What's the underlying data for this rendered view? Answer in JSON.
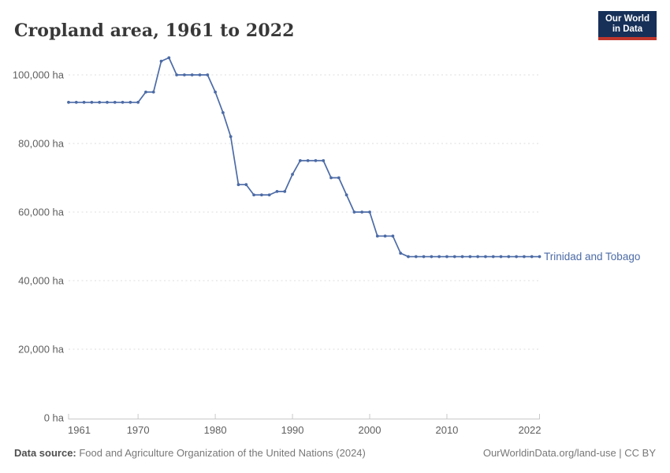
{
  "header": {
    "title": "Cropland area, 1961 to 2022"
  },
  "logo": {
    "line1": "Our World",
    "line2": "in Data",
    "bg_color": "#163058",
    "accent_color": "#c0362c"
  },
  "chart_data": {
    "type": "line",
    "title": "Cropland area, 1961 to 2022",
    "xlabel": "",
    "ylabel": "",
    "unit": "ha",
    "xlim": [
      1961,
      2022
    ],
    "ylim": [
      0,
      105000
    ],
    "grid": "horizontal-dashed",
    "legend": "end-of-line-label",
    "x_ticks": [
      1961,
      1970,
      1980,
      1990,
      2000,
      2010,
      2022
    ],
    "y_ticks": [
      {
        "value": 0,
        "label": "0 ha"
      },
      {
        "value": 20000,
        "label": "20,000 ha"
      },
      {
        "value": 40000,
        "label": "40,000 ha"
      },
      {
        "value": 60000,
        "label": "60,000 ha"
      },
      {
        "value": 80000,
        "label": "80,000 ha"
      },
      {
        "value": 100000,
        "label": "100,000 ha"
      }
    ],
    "x": [
      1961,
      1962,
      1963,
      1964,
      1965,
      1966,
      1967,
      1968,
      1969,
      1970,
      1971,
      1972,
      1973,
      1974,
      1975,
      1976,
      1977,
      1978,
      1979,
      1980,
      1981,
      1982,
      1983,
      1984,
      1985,
      1986,
      1987,
      1988,
      1989,
      1990,
      1991,
      1992,
      1993,
      1994,
      1995,
      1996,
      1997,
      1998,
      1999,
      2000,
      2001,
      2002,
      2003,
      2004,
      2005,
      2006,
      2007,
      2008,
      2009,
      2010,
      2011,
      2012,
      2013,
      2014,
      2015,
      2016,
      2017,
      2018,
      2019,
      2020,
      2021,
      2022
    ],
    "series": [
      {
        "name": "Trinidad and Tobago",
        "color": "#4c6ba6",
        "values": [
          92000,
          92000,
          92000,
          92000,
          92000,
          92000,
          92000,
          92000,
          92000,
          92000,
          95000,
          95000,
          104000,
          105000,
          100000,
          100000,
          100000,
          100000,
          100000,
          95000,
          89000,
          82000,
          68000,
          68000,
          65000,
          65000,
          65000,
          66000,
          66000,
          71000,
          75000,
          75000,
          75000,
          75000,
          70000,
          70000,
          65000,
          60000,
          60000,
          60000,
          53000,
          53000,
          53000,
          48000,
          47000,
          47000,
          47000,
          47000,
          47000,
          47000,
          47000,
          47000,
          47000,
          47000,
          47000,
          47000,
          47000,
          47000,
          47000,
          47000,
          47000,
          47000
        ]
      }
    ]
  },
  "footer": {
    "source_label": "Data source:",
    "source_text": " Food and Agriculture Organization of the United Nations (2024)",
    "credit": "OurWorldinData.org/land-use | CC BY"
  }
}
